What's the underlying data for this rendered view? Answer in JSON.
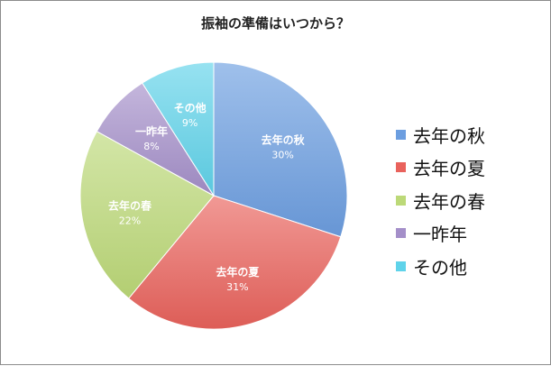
{
  "chart_data": {
    "type": "pie",
    "title": "振袖の準備はいつから？",
    "categories": [
      "去年の秋",
      "去年の夏",
      "去年の春",
      "一昨年",
      "その他"
    ],
    "values": [
      30,
      31,
      22,
      8,
      9
    ],
    "value_labels": [
      "30%",
      "31%",
      "22%",
      "8%",
      "9%"
    ],
    "colors": [
      "#6c9ee0",
      "#e9625c",
      "#bcd978",
      "#a48fc9",
      "#5fd3ea"
    ],
    "legend_position": "right",
    "start_angle": "12 o'clock",
    "direction": "clockwise"
  }
}
